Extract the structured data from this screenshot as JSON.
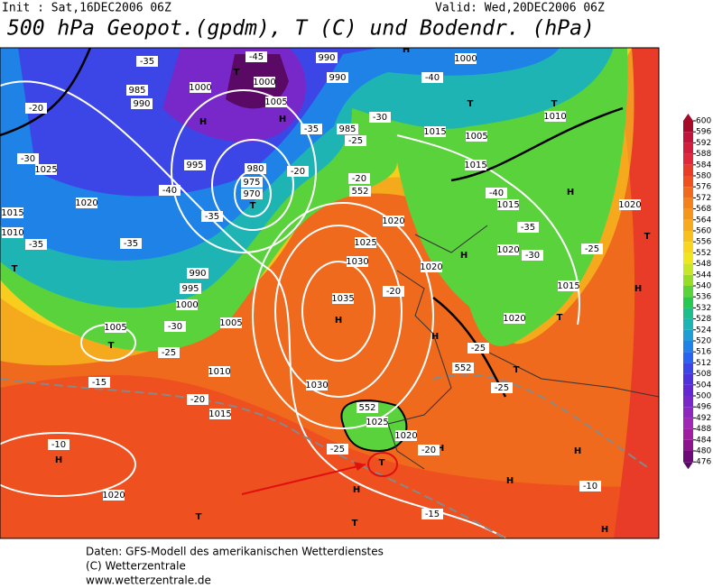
{
  "header": {
    "init": "Init : Sat,16DEC2006 06Z",
    "valid": "Valid: Wed,20DEC2006 06Z",
    "title": "500 hPa Geopot.(gpdm), T (C) und Bodendr. (hPa)"
  },
  "map": {
    "labels": [
      "H",
      "H",
      "T",
      "T",
      "H",
      "T",
      "T",
      "H",
      "T",
      "T",
      "H",
      "T",
      "H",
      "H",
      "H",
      "H",
      "T",
      "H",
      "T",
      "T",
      "H",
      "H",
      "T",
      "H",
      "T",
      "H",
      "1000",
      "1000",
      "1005",
      "990",
      "990",
      "985",
      "990",
      "985",
      "995",
      "980",
      "975",
      "970",
      "990",
      "995",
      "1000",
      "1005",
      "1005",
      "1010",
      "1015",
      "1025",
      "1020",
      "1015",
      "1010",
      "1030",
      "1035",
      "1025",
      "1020",
      "1030",
      "1025",
      "1020",
      "1020",
      "1015",
      "1005",
      "1015",
      "1015",
      "1020",
      "1020",
      "1015",
      "1020",
      "1010",
      "1000",
      "1020",
      "-35",
      "-45",
      "-40",
      "-20",
      "-30",
      "-40",
      "-35",
      "-35",
      "-35",
      "-30",
      "-25",
      "-15",
      "-20",
      "-10",
      "-25",
      "-20",
      "-15",
      "-10",
      "-25",
      "-25",
      "-20",
      "-20",
      "-25",
      "-30",
      "-35",
      "-40",
      "-30",
      "-25",
      "-35",
      "-20",
      "552",
      "552",
      "552"
    ]
  },
  "legend": {
    "items": [
      {
        "value": 600,
        "color": "#a50a2a"
      },
      {
        "value": 596,
        "color": "#c0143c"
      },
      {
        "value": 592,
        "color": "#d21e3c"
      },
      {
        "value": 588,
        "color": "#e0283a"
      },
      {
        "value": 584,
        "color": "#e83c28"
      },
      {
        "value": 580,
        "color": "#ee5020"
      },
      {
        "value": 576,
        "color": "#f06a1e"
      },
      {
        "value": 572,
        "color": "#f2821e"
      },
      {
        "value": 568,
        "color": "#f4961e"
      },
      {
        "value": 564,
        "color": "#f6aa1e"
      },
      {
        "value": 560,
        "color": "#f8c01e"
      },
      {
        "value": 556,
        "color": "#f8d61e"
      },
      {
        "value": 552,
        "color": "#f0e61e"
      },
      {
        "value": 548,
        "color": "#c8e628"
      },
      {
        "value": 544,
        "color": "#96dc28"
      },
      {
        "value": 540,
        "color": "#5ad23c"
      },
      {
        "value": 536,
        "color": "#28c850"
      },
      {
        "value": 532,
        "color": "#1ebe8c"
      },
      {
        "value": 528,
        "color": "#1eb4b4"
      },
      {
        "value": 524,
        "color": "#1e9ed2"
      },
      {
        "value": 520,
        "color": "#1e82e6"
      },
      {
        "value": 516,
        "color": "#2864f0"
      },
      {
        "value": 512,
        "color": "#3c46e6"
      },
      {
        "value": 508,
        "color": "#5032dc"
      },
      {
        "value": 504,
        "color": "#6428d2"
      },
      {
        "value": 500,
        "color": "#7828c8"
      },
      {
        "value": 496,
        "color": "#8c28be"
      },
      {
        "value": 492,
        "color": "#a028b4"
      },
      {
        "value": 488,
        "color": "#a01ea0"
      },
      {
        "value": 484,
        "color": "#8c148c"
      },
      {
        "value": 480,
        "color": "#6e0a78"
      },
      {
        "value": 476,
        "color": "#5a0a64"
      }
    ]
  },
  "footer": {
    "lines": [
      "Daten: GFS-Modell des amerikanischen Wetterdienstes",
      "(C) Wetterzentrale",
      "www.wetterzentrale.de"
    ]
  }
}
